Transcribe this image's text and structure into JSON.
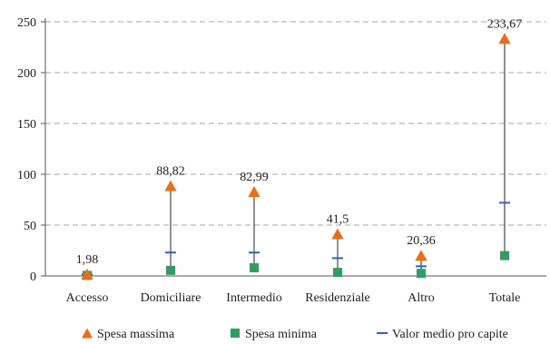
{
  "chart_data": {
    "type": "scatter",
    "categories": [
      "Accesso",
      "Domiciliare",
      "Intermedio",
      "Residenziale",
      "Altro",
      "Totale"
    ],
    "series": [
      {
        "name": "Spesa massima",
        "marker": "triangle",
        "color": "#f26b0f",
        "values": [
          1.98,
          88.82,
          82.99,
          41.5,
          20.36,
          233.67
        ]
      },
      {
        "name": "Spesa minima",
        "marker": "square",
        "color": "#2e9e63",
        "values": [
          0.5,
          5.5,
          8.0,
          3.5,
          2.5,
          20.0
        ]
      },
      {
        "name": "Valor medio pro capite",
        "marker": "dash",
        "color": "#2f5fd0",
        "values": [
          1.5,
          23.0,
          23.0,
          17.5,
          9.5,
          72.0
        ]
      }
    ],
    "data_labels": [
      "1,98",
      "88,82",
      "82,99",
      "41,5",
      "20,36",
      "233,67"
    ],
    "y_ticks": [
      0,
      50,
      100,
      150,
      200,
      250
    ],
    "ylim": [
      0,
      250
    ],
    "grid": "horizontal dashed",
    "legend_position": "bottom",
    "range_line_color": "#222222"
  }
}
